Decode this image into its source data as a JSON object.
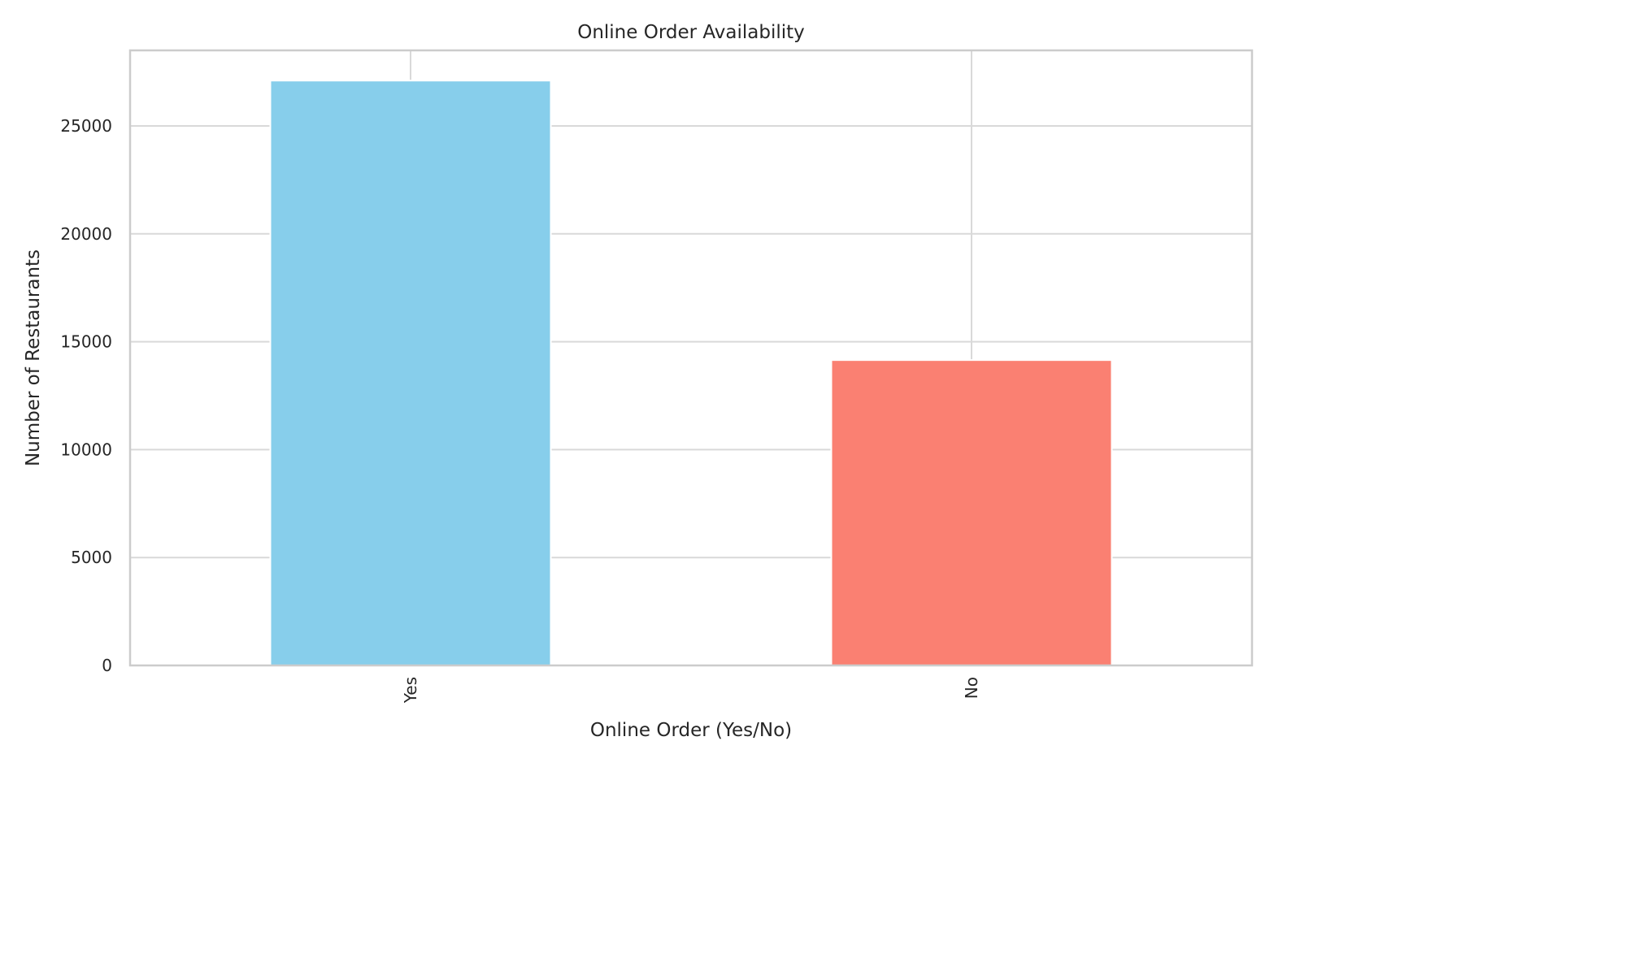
{
  "chart_data": {
    "type": "bar",
    "title": "Online Order Availability",
    "xlabel": "Online Order (Yes/No)",
    "ylabel": "Number of Restaurants",
    "categories": [
      "Yes",
      "No"
    ],
    "values": [
      27100,
      14150
    ],
    "colors": [
      "#87ceeb",
      "#fa8072"
    ],
    "ylim": [
      0,
      28500
    ],
    "yticks": [
      0,
      5000,
      10000,
      15000,
      20000,
      25000
    ],
    "ytick_labels": [
      "0",
      "5000",
      "10000",
      "15000",
      "20000",
      "25000"
    ],
    "grid": true,
    "xtick_rotation": "vertical",
    "legend": "none"
  }
}
